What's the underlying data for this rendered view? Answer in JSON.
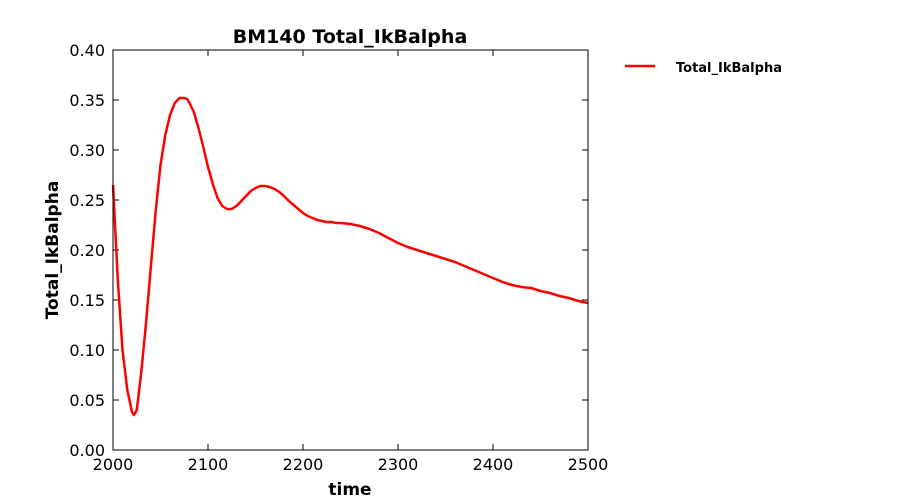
{
  "chart_data": {
    "type": "line",
    "title": "BM140 Total_IkBalpha",
    "xlabel": "time",
    "ylabel": "Total_IkBalpha",
    "xlim": [
      2000,
      2500
    ],
    "ylim": [
      0.0,
      0.4
    ],
    "x_ticks": [
      "2000",
      "2100",
      "2200",
      "2300",
      "2400",
      "2500"
    ],
    "y_ticks": [
      "0.00",
      "0.05",
      "0.10",
      "0.15",
      "0.20",
      "0.25",
      "0.30",
      "0.35",
      "0.40"
    ],
    "grid": false,
    "legend_position": "outside-top-right",
    "series": [
      {
        "name": "Total_IkBalpha",
        "color": "#ff0000",
        "x": [
          2000,
          2005,
          2010,
          2015,
          2020,
          2022,
          2025,
          2030,
          2035,
          2040,
          2045,
          2050,
          2055,
          2060,
          2065,
          2070,
          2075,
          2078,
          2080,
          2085,
          2090,
          2095,
          2100,
          2105,
          2110,
          2115,
          2120,
          2125,
          2130,
          2135,
          2140,
          2145,
          2150,
          2155,
          2160,
          2165,
          2170,
          2175,
          2180,
          2185,
          2190,
          2195,
          2200,
          2205,
          2210,
          2215,
          2220,
          2225,
          2230,
          2235,
          2240,
          2250,
          2260,
          2270,
          2280,
          2290,
          2300,
          2310,
          2320,
          2330,
          2340,
          2350,
          2360,
          2370,
          2380,
          2390,
          2400,
          2410,
          2420,
          2430,
          2440,
          2450,
          2460,
          2470,
          2480,
          2490,
          2500
        ],
        "y": [
          0.265,
          0.17,
          0.1,
          0.06,
          0.038,
          0.035,
          0.04,
          0.08,
          0.13,
          0.185,
          0.24,
          0.285,
          0.315,
          0.335,
          0.347,
          0.352,
          0.352,
          0.351,
          0.348,
          0.338,
          0.322,
          0.303,
          0.283,
          0.266,
          0.252,
          0.244,
          0.241,
          0.241,
          0.244,
          0.249,
          0.254,
          0.259,
          0.262,
          0.264,
          0.264,
          0.263,
          0.261,
          0.258,
          0.254,
          0.249,
          0.245,
          0.241,
          0.237,
          0.234,
          0.232,
          0.23,
          0.229,
          0.228,
          0.228,
          0.227,
          0.227,
          0.226,
          0.224,
          0.221,
          0.217,
          0.212,
          0.207,
          0.203,
          0.2,
          0.197,
          0.194,
          0.191,
          0.188,
          0.184,
          0.18,
          0.176,
          0.172,
          0.168,
          0.165,
          0.163,
          0.162,
          0.159,
          0.157,
          0.154,
          0.152,
          0.149,
          0.147
        ]
      }
    ]
  }
}
